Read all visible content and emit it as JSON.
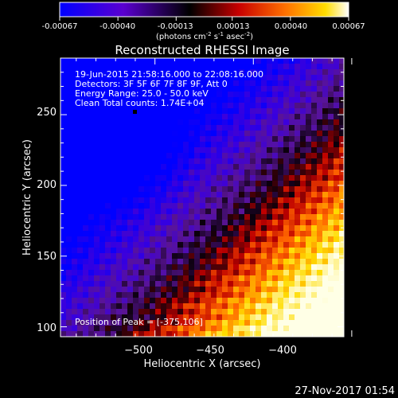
{
  "colorbar": {
    "tick_labels": [
      "-0.00067",
      "-0.00040",
      "-0.00013",
      "0.00013",
      "0.00040",
      "0.00067"
    ],
    "ticks": [
      -0.00067,
      -0.0004,
      -0.00013,
      0.00013,
      0.0004,
      0.00067
    ],
    "range": [
      -0.00067,
      0.00067
    ],
    "units_main": "(photons cm",
    "units_sup1": "-2",
    "units_mid": " s",
    "units_sup2": "-1",
    "units_end": " asec",
    "units_sup3": "-2",
    "units_close": ")"
  },
  "title": "Reconstructed RHESSI Image",
  "info": {
    "line1": "19-Jun-2015 21:58:16.000 to 22:08:16.000",
    "line2": "Detectors: 3F 5F 6F 7F 8F 9F, Att 0",
    "line3": "Energy Range: 25.0 - 50.0 keV",
    "line4": "Clean     Total counts: 1.74E+04"
  },
  "peak_label": "Position of Peak = [-375,106]",
  "footer_date": "27-Nov-2017 01:54",
  "chart_data": {
    "type": "heatmap",
    "title": "Reconstructed RHESSI Image",
    "xlabel": "Heliocentric X (arcsec)",
    "ylabel": "Heliocentric Y (arcsec)",
    "xlim": [
      -548,
      -404
    ],
    "ylim": [
      93,
      290
    ],
    "xticks": [
      -500,
      -450,
      -400
    ],
    "xtick_labels": [
      "−500",
      "−450",
      "−400"
    ],
    "yticks": [
      100,
      150,
      200,
      250
    ],
    "ytick_labels": [
      "100",
      "150",
      "200",
      "250"
    ],
    "colorscale": [
      "#0000ff",
      "#4a00e0",
      "#000000",
      "#c80000",
      "#ff7800",
      "#ffff00",
      "#ffffff"
    ],
    "peak_position": [
      -375,
      106
    ]
  }
}
